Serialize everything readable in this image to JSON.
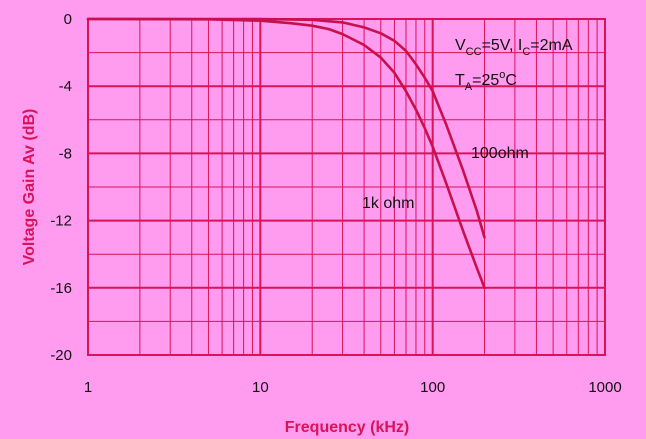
{
  "colors": {
    "background": "#ff9cf0",
    "grid": "#d8135a",
    "curve": "#c8104f",
    "axis_title": "#d8135a",
    "text": "#111111"
  },
  "chart_data": {
    "type": "line",
    "xlabel": "Frequency (kHz)",
    "ylabel": "Voltage Gain Av (dB)",
    "x_scale": "log",
    "xlim": [
      1,
      1000
    ],
    "ylim": [
      -20,
      0
    ],
    "x_ticks": [
      1,
      10,
      100,
      1000
    ],
    "x_tick_labels": [
      "1",
      "10",
      "100",
      "1000"
    ],
    "y_ticks": [
      0,
      -4,
      -8,
      -12,
      -16,
      -20
    ],
    "y_tick_labels": [
      "0",
      "-4",
      "-8",
      "-12",
      "-16",
      "-20"
    ],
    "grid": true,
    "conditions": {
      "vcc_label": "V",
      "vcc_sub": "CC",
      "vcc_rest": "=5V, I",
      "ic_sub": "C",
      "ic_rest": "=2mA",
      "ta_label": "T",
      "ta_sub": "A",
      "ta_rest": "=25",
      "ta_sup": "o",
      "ta_unit": "C"
    },
    "series": [
      {
        "name": "100ohm",
        "color": "#c8104f",
        "x": [
          1,
          5,
          10,
          20,
          30,
          40,
          50,
          60,
          70,
          80,
          90,
          100,
          120,
          150,
          180,
          200
        ],
        "y": [
          0,
          0,
          0,
          -0.05,
          -0.2,
          -0.5,
          -0.85,
          -1.3,
          -1.9,
          -2.7,
          -3.5,
          -4.3,
          -6.3,
          -9.0,
          -11.4,
          -13.0
        ]
      },
      {
        "name": "1k ohm",
        "color": "#c8104f",
        "x": [
          1,
          5,
          10,
          15,
          20,
          25,
          30,
          40,
          50,
          60,
          70,
          80,
          90,
          100,
          120,
          150,
          180,
          200
        ],
        "y": [
          0,
          -0.02,
          -0.1,
          -0.25,
          -0.4,
          -0.6,
          -0.9,
          -1.55,
          -2.3,
          -3.2,
          -4.3,
          -5.4,
          -6.5,
          -7.6,
          -9.8,
          -12.6,
          -14.8,
          -16.0
        ]
      }
    ]
  }
}
